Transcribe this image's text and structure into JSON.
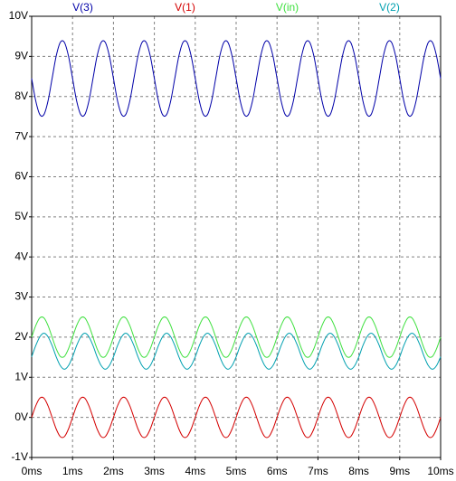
{
  "chart_data": {
    "type": "line",
    "x": [
      0,
      0.1,
      0.2,
      0.3,
      0.4,
      0.5,
      0.6,
      0.7,
      0.8,
      0.9,
      1,
      1.1,
      1.2,
      1.3,
      1.4,
      1.5,
      1.6,
      1.7,
      1.8,
      1.9,
      2,
      2.1,
      2.2,
      2.3,
      2.4,
      2.5,
      2.6,
      2.7,
      2.8,
      2.9,
      3,
      3.1,
      3.2,
      3.3,
      3.4,
      3.5,
      3.6,
      3.7,
      3.8,
      3.9,
      4,
      4.1,
      4.2,
      4.3,
      4.4,
      4.5,
      4.6,
      4.7,
      4.8,
      4.9,
      5,
      5.1,
      5.2,
      5.3,
      5.4,
      5.5,
      5.6,
      5.7,
      5.8,
      5.9,
      6,
      6.1,
      6.2,
      6.3,
      6.4,
      6.5,
      6.6,
      6.7,
      6.8,
      6.9,
      7,
      7.1,
      7.2,
      7.3,
      7.4,
      7.5,
      7.6,
      7.7,
      7.8,
      7.9,
      8,
      8.1,
      8.2,
      8.3,
      8.4,
      8.5,
      8.6,
      8.7,
      8.8,
      8.9,
      9,
      9.1,
      9.2,
      9.3,
      9.4,
      9.5,
      9.6,
      9.7,
      9.8,
      9.9,
      10
    ],
    "series": [
      {
        "name": "V(3)",
        "color": "#0000a8",
        "values": [
          8.45,
          7.89,
          7.55,
          7.55,
          7.89,
          8.45,
          9.01,
          9.35,
          9.35,
          9.01,
          8.45,
          7.89,
          7.55,
          7.55,
          7.89,
          8.45,
          9.01,
          9.35,
          9.35,
          9.01,
          8.45,
          7.89,
          7.55,
          7.55,
          7.89,
          8.45,
          9.01,
          9.35,
          9.35,
          9.01,
          8.45,
          7.89,
          7.55,
          7.55,
          7.89,
          8.45,
          9.01,
          9.35,
          9.35,
          9.01,
          8.45,
          7.89,
          7.55,
          7.55,
          7.89,
          8.45,
          9.01,
          9.35,
          9.35,
          9.01,
          8.45,
          7.89,
          7.55,
          7.55,
          7.89,
          8.45,
          9.01,
          9.35,
          9.35,
          9.01,
          8.45,
          7.89,
          7.55,
          7.55,
          7.89,
          8.45,
          9.01,
          9.35,
          9.35,
          9.01,
          8.45,
          7.89,
          7.55,
          7.55,
          7.89,
          8.45,
          9.01,
          9.35,
          9.35,
          9.01,
          8.45,
          7.89,
          7.55,
          7.55,
          7.89,
          8.45,
          9.01,
          9.35,
          9.35,
          9.01,
          8.45,
          7.89,
          7.55,
          7.55,
          7.89,
          8.45,
          9.01,
          9.35,
          9.35,
          9.01,
          8.45
        ]
      },
      {
        "name": "V(1)",
        "color": "#d40000",
        "values": [
          0,
          0.29,
          0.48,
          0.48,
          0.29,
          0,
          -0.29,
          -0.48,
          -0.48,
          -0.29,
          0,
          0.29,
          0.48,
          0.48,
          0.29,
          0,
          -0.29,
          -0.48,
          -0.48,
          -0.29,
          0,
          0.29,
          0.48,
          0.48,
          0.29,
          0,
          -0.29,
          -0.48,
          -0.48,
          -0.29,
          0,
          0.29,
          0.48,
          0.48,
          0.29,
          0,
          -0.29,
          -0.48,
          -0.48,
          -0.29,
          0,
          0.29,
          0.48,
          0.48,
          0.29,
          0,
          -0.29,
          -0.48,
          -0.48,
          -0.29,
          0,
          0.29,
          0.48,
          0.48,
          0.29,
          0,
          -0.29,
          -0.48,
          -0.48,
          -0.29,
          0,
          0.29,
          0.48,
          0.48,
          0.29,
          0,
          -0.29,
          -0.48,
          -0.48,
          -0.29,
          0,
          0.29,
          0.48,
          0.48,
          0.29,
          0,
          -0.29,
          -0.48,
          -0.48,
          -0.29,
          0,
          0.29,
          0.48,
          0.48,
          0.29,
          0,
          -0.29,
          -0.48,
          -0.48,
          -0.29,
          0,
          0.29,
          0.48,
          0.48,
          0.29,
          0,
          -0.29,
          -0.48,
          -0.48,
          -0.29,
          0
        ]
      },
      {
        "name": "V(in)",
        "color": "#3ee03e",
        "values": [
          2,
          2.29,
          2.48,
          2.48,
          2.29,
          2,
          1.71,
          1.52,
          1.52,
          1.71,
          2,
          2.29,
          2.48,
          2.48,
          2.29,
          2,
          1.71,
          1.52,
          1.52,
          1.71,
          2,
          2.29,
          2.48,
          2.48,
          2.29,
          2,
          1.71,
          1.52,
          1.52,
          1.71,
          2,
          2.29,
          2.48,
          2.48,
          2.29,
          2,
          1.71,
          1.52,
          1.52,
          1.71,
          2,
          2.29,
          2.48,
          2.48,
          2.29,
          2,
          1.71,
          1.52,
          1.52,
          1.71,
          2,
          2.29,
          2.48,
          2.48,
          2.29,
          2,
          1.71,
          1.52,
          1.52,
          1.71,
          2,
          2.29,
          2.48,
          2.48,
          2.29,
          2,
          1.71,
          1.52,
          1.52,
          1.71,
          2,
          2.29,
          2.48,
          2.48,
          2.29,
          2,
          1.71,
          1.52,
          1.52,
          1.71,
          2,
          2.29,
          2.48,
          2.48,
          2.29,
          2,
          1.71,
          1.52,
          1.52,
          1.71,
          2,
          2.29,
          2.48,
          2.48,
          2.29,
          2,
          1.71,
          1.52,
          1.52,
          1.71,
          2
        ]
      },
      {
        "name": "V(2)",
        "color": "#00a0b0",
        "values": [
          1.51,
          1.79,
          2.01,
          2.1,
          2.01,
          1.79,
          1.51,
          1.29,
          1.2,
          1.29,
          1.51,
          1.79,
          2.01,
          2.1,
          2.01,
          1.79,
          1.51,
          1.29,
          1.2,
          1.29,
          1.51,
          1.79,
          2.01,
          2.1,
          2.01,
          1.79,
          1.51,
          1.29,
          1.2,
          1.29,
          1.51,
          1.79,
          2.01,
          2.1,
          2.01,
          1.79,
          1.51,
          1.29,
          1.2,
          1.29,
          1.51,
          1.79,
          2.01,
          2.1,
          2.01,
          1.79,
          1.51,
          1.29,
          1.2,
          1.29,
          1.51,
          1.79,
          2.01,
          2.1,
          2.01,
          1.79,
          1.51,
          1.29,
          1.2,
          1.29,
          1.51,
          1.79,
          2.01,
          2.1,
          2.01,
          1.79,
          1.51,
          1.29,
          1.2,
          1.29,
          1.51,
          1.79,
          2.01,
          2.1,
          2.01,
          1.79,
          1.51,
          1.29,
          1.2,
          1.29,
          1.51,
          1.79,
          2.01,
          2.1,
          2.01,
          1.79,
          1.51,
          1.29,
          1.2,
          1.29,
          1.51,
          1.79,
          2.01,
          2.1,
          2.01,
          1.79,
          1.51,
          1.29,
          1.2,
          1.29,
          1.51
        ]
      }
    ],
    "xlim": [
      0,
      10
    ],
    "xticks": [
      {
        "value": 0,
        "label": "0ms"
      },
      {
        "value": 1,
        "label": "1ms"
      },
      {
        "value": 2,
        "label": "2ms"
      },
      {
        "value": 3,
        "label": "3ms"
      },
      {
        "value": 4,
        "label": "4ms"
      },
      {
        "value": 5,
        "label": "5ms"
      },
      {
        "value": 6,
        "label": "6ms"
      },
      {
        "value": 7,
        "label": "7ms"
      },
      {
        "value": 8,
        "label": "8ms"
      },
      {
        "value": 9,
        "label": "9ms"
      },
      {
        "value": 10,
        "label": "10ms"
      }
    ],
    "ylim": [
      -1,
      10
    ],
    "yticks": [
      {
        "value": -1,
        "label": "-1V"
      },
      {
        "value": 0,
        "label": "0V"
      },
      {
        "value": 1,
        "label": "1V"
      },
      {
        "value": 2,
        "label": "2V"
      },
      {
        "value": 3,
        "label": "3V"
      },
      {
        "value": 4,
        "label": "4V"
      },
      {
        "value": 5,
        "label": "5V"
      },
      {
        "value": 6,
        "label": "6V"
      },
      {
        "value": 7,
        "label": "7V"
      },
      {
        "value": 8,
        "label": "8V"
      },
      {
        "value": 9,
        "label": "9V"
      },
      {
        "value": 10,
        "label": "10V"
      }
    ],
    "grid": true
  }
}
